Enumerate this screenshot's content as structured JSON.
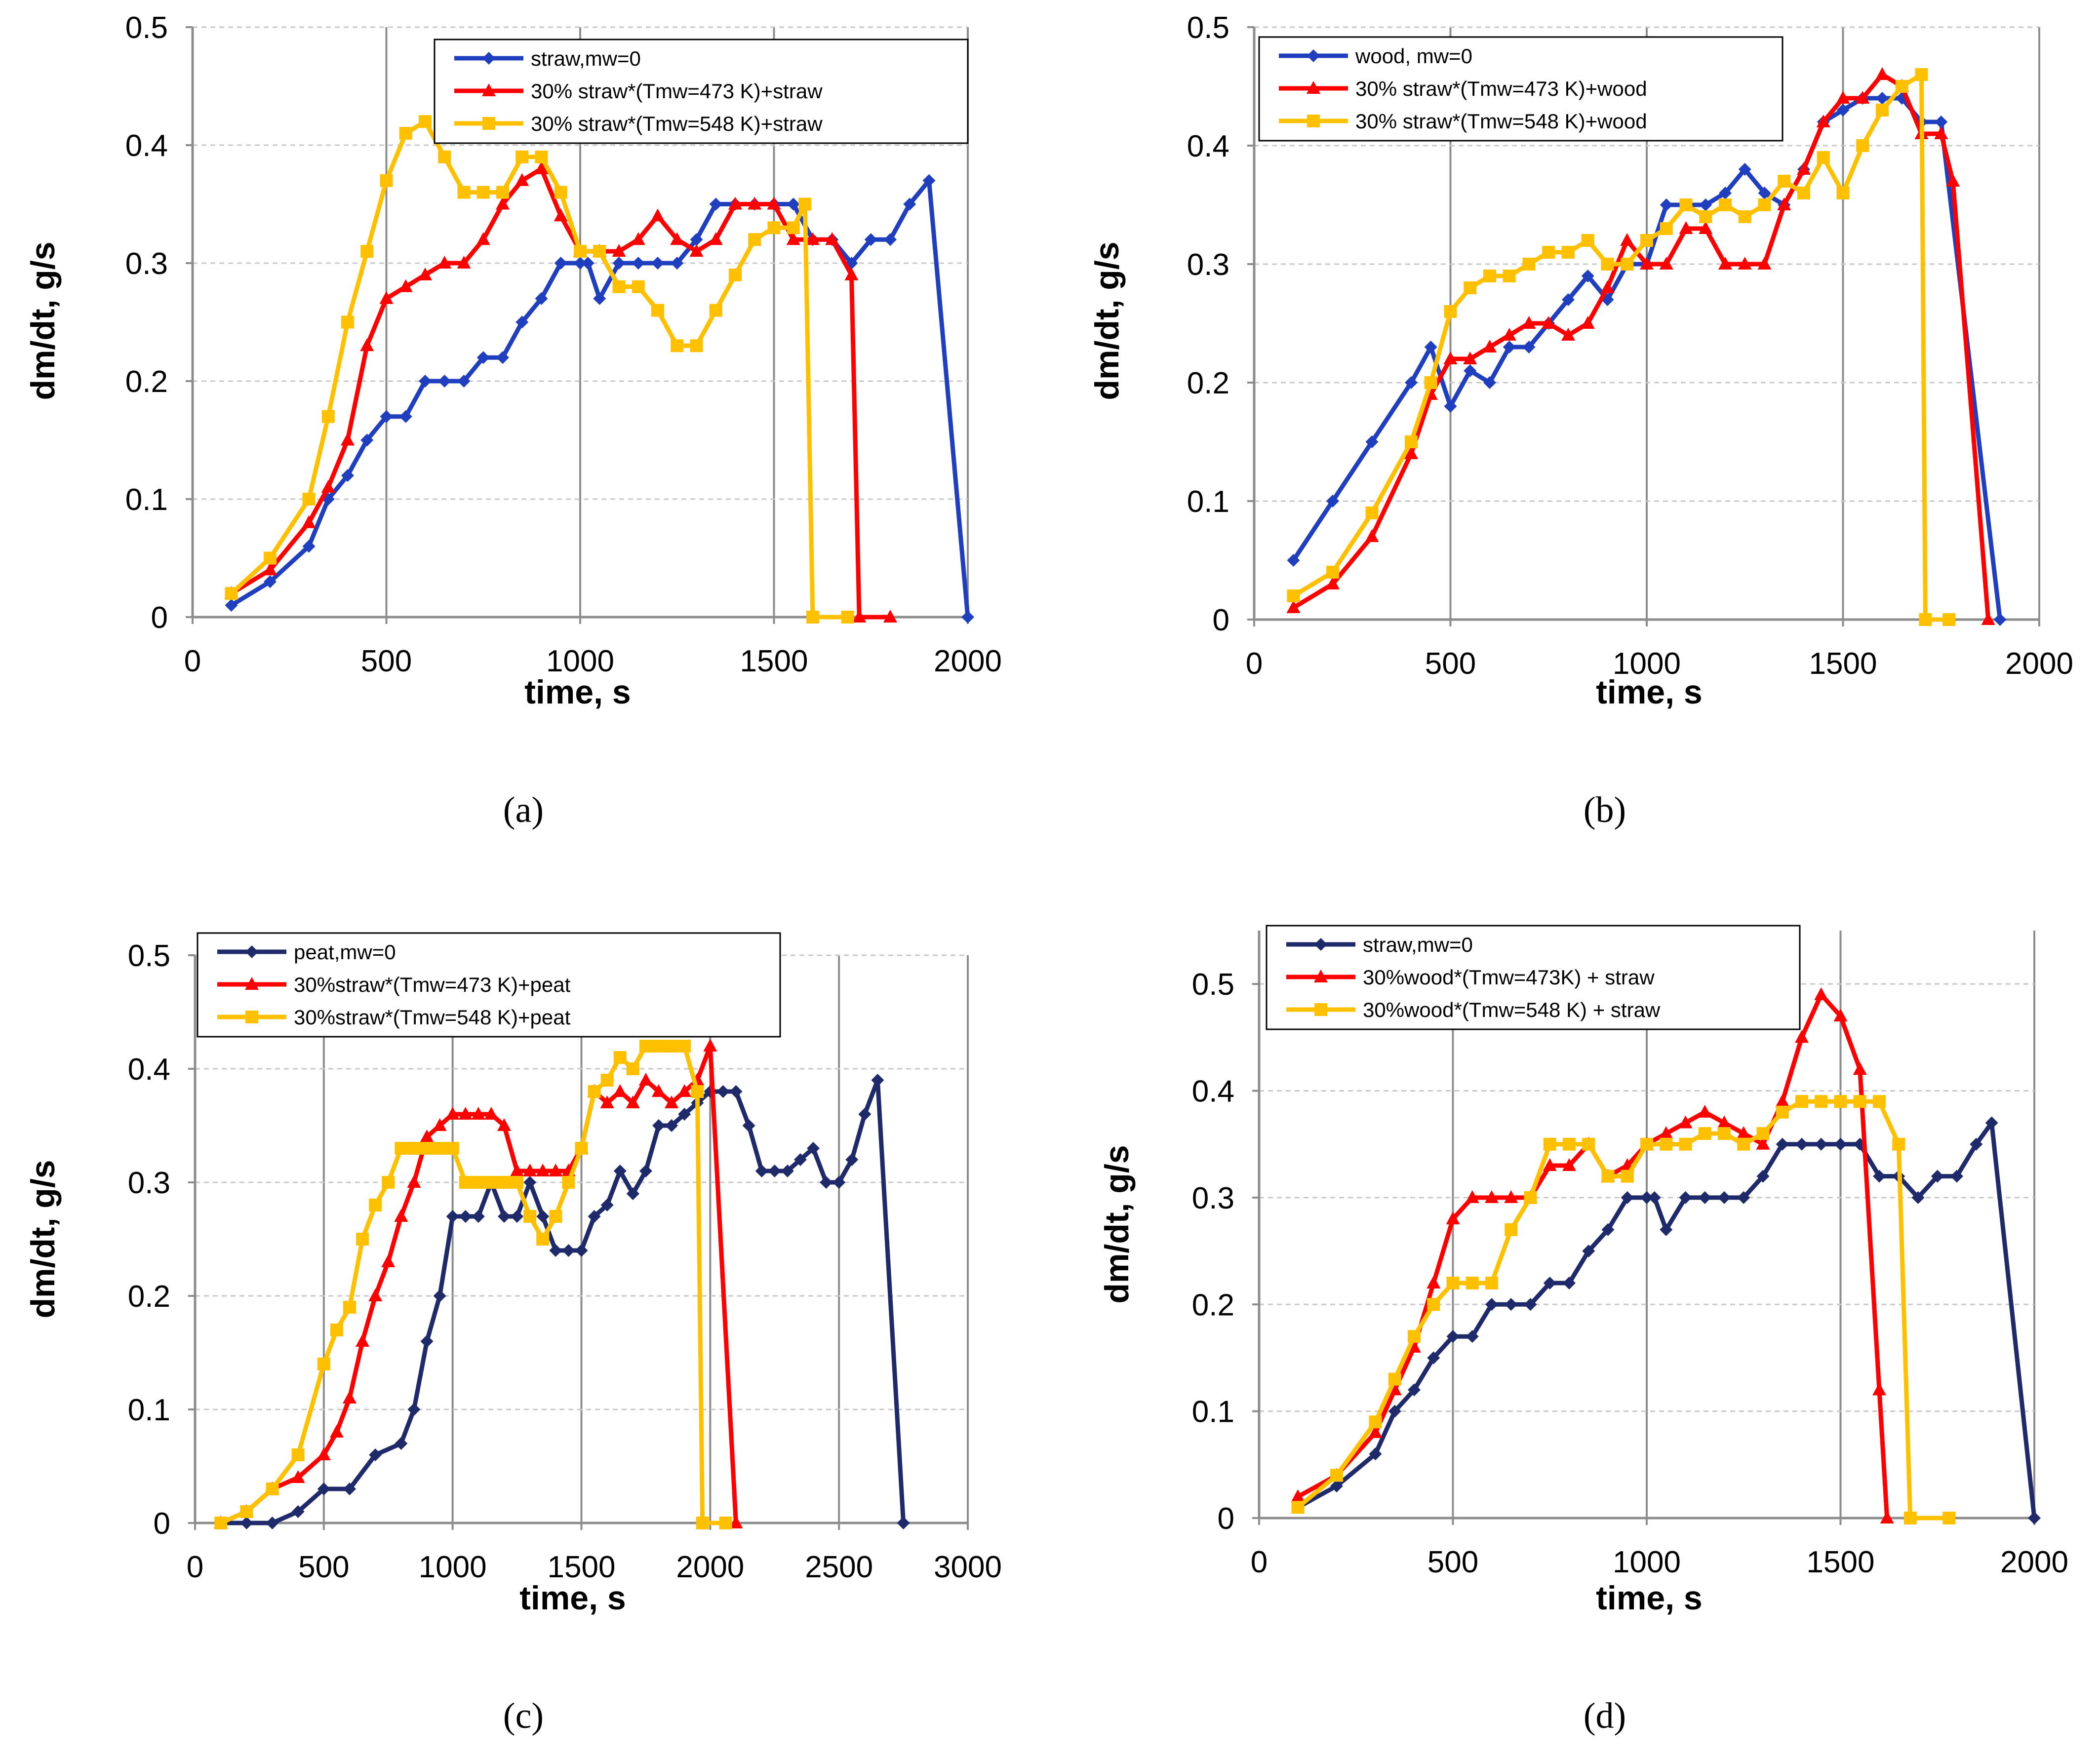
{
  "chart_data": [
    {
      "type": "line",
      "panel_label": "(a)",
      "xlabel": "time, s",
      "ylabel": "dm/dt, g/s",
      "xlim": [
        0,
        2000
      ],
      "ylim": [
        0,
        0.5
      ],
      "xticks": [
        0,
        500,
        1000,
        1500,
        2000
      ],
      "yticks": [
        0,
        0.1,
        0.2,
        0.3,
        0.4,
        0.5
      ],
      "ytick_labels": [
        "0",
        "0.1",
        "0.2",
        "0.3",
        "0.4",
        "0.5"
      ],
      "grid": "vertical major",
      "legend_position": "top-right",
      "series": [
        {
          "name": "straw,mw=0",
          "color": "#1F3FBF",
          "marker": "diamond",
          "x": [
            100,
            200,
            300,
            350,
            400,
            450,
            500,
            550,
            600,
            650,
            700,
            750,
            800,
            850,
            900,
            950,
            1000,
            1020,
            1050,
            1100,
            1150,
            1200,
            1250,
            1300,
            1350,
            1400,
            1450,
            1500,
            1550,
            1600,
            1650,
            1700,
            1750,
            1800,
            1850,
            1900,
            2000
          ],
          "y": [
            0.01,
            0.03,
            0.06,
            0.1,
            0.12,
            0.15,
            0.17,
            0.17,
            0.2,
            0.2,
            0.2,
            0.22,
            0.22,
            0.25,
            0.27,
            0.3,
            0.3,
            0.3,
            0.27,
            0.3,
            0.3,
            0.3,
            0.3,
            0.32,
            0.35,
            0.35,
            0.35,
            0.35,
            0.35,
            0.32,
            0.32,
            0.3,
            0.32,
            0.32,
            0.35,
            0.37,
            0.0
          ]
        },
        {
          "name": "30% straw*(Tmw=473 K)+straw",
          "color": "#FF0000",
          "marker": "triangle",
          "x": [
            100,
            200,
            300,
            350,
            400,
            450,
            500,
            550,
            600,
            650,
            700,
            750,
            800,
            850,
            900,
            950,
            1000,
            1050,
            1100,
            1150,
            1200,
            1250,
            1300,
            1350,
            1400,
            1450,
            1500,
            1550,
            1600,
            1650,
            1700,
            1720,
            1800
          ],
          "y": [
            0.02,
            0.04,
            0.08,
            0.11,
            0.15,
            0.23,
            0.27,
            0.28,
            0.29,
            0.3,
            0.3,
            0.32,
            0.35,
            0.37,
            0.38,
            0.34,
            0.31,
            0.31,
            0.31,
            0.32,
            0.34,
            0.32,
            0.31,
            0.32,
            0.35,
            0.35,
            0.35,
            0.32,
            0.32,
            0.32,
            0.29,
            0.0,
            0.0
          ]
        },
        {
          "name": "30% straw*(Tmw=548 K)+straw",
          "color": "#FFC000",
          "marker": "square",
          "x": [
            100,
            200,
            300,
            350,
            400,
            450,
            500,
            550,
            600,
            650,
            700,
            750,
            800,
            850,
            900,
            950,
            1000,
            1050,
            1100,
            1150,
            1200,
            1250,
            1300,
            1350,
            1400,
            1450,
            1500,
            1550,
            1580,
            1600,
            1690
          ],
          "y": [
            0.02,
            0.05,
            0.1,
            0.17,
            0.25,
            0.31,
            0.37,
            0.41,
            0.42,
            0.39,
            0.36,
            0.36,
            0.36,
            0.39,
            0.39,
            0.36,
            0.31,
            0.31,
            0.28,
            0.28,
            0.26,
            0.23,
            0.23,
            0.26,
            0.29,
            0.32,
            0.33,
            0.33,
            0.35,
            0.0,
            0.0
          ]
        }
      ]
    },
    {
      "type": "line",
      "panel_label": "(b)",
      "xlabel": "time, s",
      "ylabel": "dm/dt, g/s",
      "xlim": [
        0,
        2000
      ],
      "ylim": [
        0,
        0.5
      ],
      "xticks": [
        0,
        500,
        1000,
        1500,
        2000
      ],
      "yticks": [
        0,
        0.1,
        0.2,
        0.3,
        0.4,
        0.5
      ],
      "ytick_labels": [
        "0",
        "0.1",
        "0.2",
        "0.3",
        "0.4",
        "0.5"
      ],
      "grid": "vertical major",
      "legend_position": "top",
      "series": [
        {
          "name": "wood, mw=0",
          "color": "#1F3FBF",
          "marker": "diamond",
          "x": [
            100,
            200,
            300,
            400,
            450,
            500,
            550,
            600,
            650,
            700,
            750,
            800,
            850,
            900,
            950,
            1000,
            1050,
            1100,
            1150,
            1200,
            1250,
            1300,
            1350,
            1400,
            1450,
            1500,
            1550,
            1600,
            1650,
            1700,
            1750,
            1900
          ],
          "y": [
            0.05,
            0.1,
            0.15,
            0.2,
            0.23,
            0.18,
            0.21,
            0.2,
            0.23,
            0.23,
            0.25,
            0.27,
            0.29,
            0.27,
            0.3,
            0.3,
            0.35,
            0.35,
            0.35,
            0.36,
            0.38,
            0.36,
            0.35,
            0.38,
            0.42,
            0.43,
            0.44,
            0.44,
            0.44,
            0.42,
            0.42,
            0.0
          ]
        },
        {
          "name": "30% straw*(Tmw=473 K)+wood",
          "color": "#FF0000",
          "marker": "triangle",
          "x": [
            100,
            200,
            300,
            400,
            450,
            500,
            550,
            600,
            650,
            700,
            750,
            800,
            850,
            900,
            950,
            1000,
            1050,
            1100,
            1150,
            1200,
            1250,
            1300,
            1350,
            1400,
            1450,
            1500,
            1550,
            1600,
            1650,
            1700,
            1750,
            1780,
            1870
          ],
          "y": [
            0.01,
            0.03,
            0.07,
            0.14,
            0.19,
            0.22,
            0.22,
            0.23,
            0.24,
            0.25,
            0.25,
            0.24,
            0.25,
            0.28,
            0.32,
            0.3,
            0.3,
            0.33,
            0.33,
            0.3,
            0.3,
            0.3,
            0.35,
            0.38,
            0.42,
            0.44,
            0.44,
            0.46,
            0.45,
            0.41,
            0.41,
            0.37,
            0.0
          ]
        },
        {
          "name": "30% straw*(Tmw=548 K)+wood",
          "color": "#FFC000",
          "marker": "square",
          "x": [
            100,
            200,
            300,
            400,
            450,
            500,
            550,
            600,
            650,
            700,
            750,
            800,
            850,
            900,
            950,
            1000,
            1050,
            1100,
            1150,
            1200,
            1250,
            1300,
            1350,
            1400,
            1450,
            1500,
            1550,
            1600,
            1650,
            1700,
            1710,
            1770
          ],
          "y": [
            0.02,
            0.04,
            0.09,
            0.15,
            0.2,
            0.26,
            0.28,
            0.29,
            0.29,
            0.3,
            0.31,
            0.31,
            0.32,
            0.3,
            0.3,
            0.32,
            0.33,
            0.35,
            0.34,
            0.35,
            0.34,
            0.35,
            0.37,
            0.36,
            0.39,
            0.36,
            0.4,
            0.43,
            0.45,
            0.46,
            0.0,
            0.0
          ]
        }
      ]
    },
    {
      "type": "line",
      "panel_label": "(c)",
      "xlabel": "time, s",
      "ylabel": "dm/dt, g/s",
      "xlim": [
        0,
        3000
      ],
      "ylim": [
        0,
        0.5
      ],
      "xticks": [
        0,
        500,
        1000,
        1500,
        2000,
        2500,
        3000
      ],
      "yticks": [
        0,
        0.1,
        0.2,
        0.3,
        0.4,
        0.5
      ],
      "ytick_labels": [
        "0",
        "0.1",
        "0.2",
        "0.3",
        "0.4",
        "0.5"
      ],
      "grid": "vertical major",
      "legend_position": "top-left",
      "series": [
        {
          "name": "peat,mw=0",
          "color": "#1F2A6B",
          "marker": "diamond",
          "x": [
            100,
            200,
            300,
            400,
            500,
            600,
            700,
            800,
            850,
            900,
            950,
            1000,
            1050,
            1100,
            1150,
            1200,
            1250,
            1300,
            1350,
            1400,
            1450,
            1500,
            1550,
            1600,
            1650,
            1700,
            1750,
            1800,
            1850,
            1900,
            1950,
            2000,
            2050,
            2100,
            2150,
            2200,
            2250,
            2300,
            2350,
            2400,
            2450,
            2500,
            2550,
            2600,
            2650,
            2750
          ],
          "y": [
            0.0,
            0.0,
            0.0,
            0.01,
            0.03,
            0.03,
            0.06,
            0.07,
            0.1,
            0.16,
            0.2,
            0.27,
            0.27,
            0.27,
            0.3,
            0.27,
            0.27,
            0.3,
            0.27,
            0.24,
            0.24,
            0.24,
            0.27,
            0.28,
            0.31,
            0.29,
            0.31,
            0.35,
            0.35,
            0.36,
            0.37,
            0.38,
            0.38,
            0.38,
            0.35,
            0.31,
            0.31,
            0.31,
            0.32,
            0.33,
            0.3,
            0.3,
            0.32,
            0.36,
            0.39,
            0.0
          ]
        },
        {
          "name": "30%straw*(Tmw=473 K)+peat",
          "color": "#FF0000",
          "marker": "triangle",
          "x": [
            100,
            200,
            300,
            400,
            500,
            550,
            600,
            650,
            700,
            750,
            800,
            850,
            900,
            950,
            1000,
            1050,
            1100,
            1150,
            1200,
            1250,
            1300,
            1350,
            1400,
            1450,
            1500,
            1550,
            1600,
            1650,
            1700,
            1750,
            1800,
            1850,
            1900,
            1950,
            2000,
            2100
          ],
          "y": [
            0.0,
            0.01,
            0.03,
            0.04,
            0.06,
            0.08,
            0.11,
            0.16,
            0.2,
            0.23,
            0.27,
            0.3,
            0.34,
            0.35,
            0.36,
            0.36,
            0.36,
            0.36,
            0.35,
            0.31,
            0.31,
            0.31,
            0.31,
            0.31,
            0.33,
            0.38,
            0.37,
            0.38,
            0.37,
            0.39,
            0.38,
            0.37,
            0.38,
            0.39,
            0.42,
            0.0
          ]
        },
        {
          "name": "30%straw*(Tmw=548 K)+peat",
          "color": "#FFC000",
          "marker": "square",
          "x": [
            100,
            200,
            300,
            400,
            500,
            550,
            600,
            650,
            700,
            750,
            800,
            850,
            900,
            950,
            1000,
            1050,
            1100,
            1150,
            1200,
            1250,
            1300,
            1350,
            1400,
            1450,
            1500,
            1550,
            1600,
            1650,
            1700,
            1750,
            1800,
            1850,
            1900,
            1950,
            1970,
            2060
          ],
          "y": [
            0.0,
            0.01,
            0.03,
            0.06,
            0.14,
            0.17,
            0.19,
            0.25,
            0.28,
            0.3,
            0.33,
            0.33,
            0.33,
            0.33,
            0.33,
            0.3,
            0.3,
            0.3,
            0.3,
            0.3,
            0.27,
            0.25,
            0.27,
            0.3,
            0.33,
            0.38,
            0.39,
            0.41,
            0.4,
            0.42,
            0.42,
            0.42,
            0.42,
            0.38,
            0.0,
            0.0
          ]
        }
      ]
    },
    {
      "type": "line",
      "panel_label": "(d)",
      "xlabel": "time, s",
      "ylabel": "dm/dt, g/s",
      "xlim": [
        0,
        2000
      ],
      "ylim": [
        0,
        0.55
      ],
      "xticks": [
        0,
        500,
        1000,
        1500,
        2000
      ],
      "yticks": [
        0,
        0.1,
        0.2,
        0.3,
        0.4,
        0.5
      ],
      "ytick_labels": [
        "0",
        "0.1",
        "0.2",
        "0.3",
        "0.4",
        "0.5"
      ],
      "grid": "vertical major",
      "legend_position": "top-left",
      "series": [
        {
          "name": "straw,mw=0",
          "color": "#1F2A6B",
          "marker": "diamond",
          "x": [
            100,
            200,
            300,
            350,
            400,
            450,
            500,
            550,
            600,
            650,
            700,
            750,
            800,
            850,
            900,
            950,
            1000,
            1020,
            1050,
            1100,
            1150,
            1200,
            1250,
            1300,
            1350,
            1400,
            1450,
            1500,
            1550,
            1600,
            1650,
            1700,
            1750,
            1800,
            1850,
            1890,
            2000
          ],
          "y": [
            0.01,
            0.03,
            0.06,
            0.1,
            0.12,
            0.15,
            0.17,
            0.17,
            0.2,
            0.2,
            0.2,
            0.22,
            0.22,
            0.25,
            0.27,
            0.3,
            0.3,
            0.3,
            0.27,
            0.3,
            0.3,
            0.3,
            0.3,
            0.32,
            0.35,
            0.35,
            0.35,
            0.35,
            0.35,
            0.32,
            0.32,
            0.3,
            0.32,
            0.32,
            0.35,
            0.37,
            0.0
          ]
        },
        {
          "name": "30%wood*(Tmw=473K) + straw",
          "color": "#FF0000",
          "marker": "triangle",
          "x": [
            100,
            200,
            300,
            350,
            400,
            450,
            500,
            550,
            600,
            650,
            700,
            750,
            800,
            850,
            900,
            950,
            1000,
            1050,
            1100,
            1150,
            1200,
            1250,
            1300,
            1350,
            1400,
            1450,
            1500,
            1550,
            1600,
            1620
          ],
          "y": [
            0.02,
            0.04,
            0.08,
            0.12,
            0.16,
            0.22,
            0.28,
            0.3,
            0.3,
            0.3,
            0.3,
            0.33,
            0.33,
            0.35,
            0.32,
            0.33,
            0.35,
            0.36,
            0.37,
            0.38,
            0.37,
            0.36,
            0.35,
            0.39,
            0.45,
            0.49,
            0.47,
            0.42,
            0.12,
            0.0
          ]
        },
        {
          "name": "30%wood*(Tmw=548 K) + straw",
          "color": "#FFC000",
          "marker": "square",
          "x": [
            100,
            200,
            300,
            350,
            400,
            450,
            500,
            550,
            600,
            650,
            700,
            750,
            800,
            850,
            900,
            950,
            1000,
            1050,
            1100,
            1150,
            1200,
            1250,
            1300,
            1350,
            1400,
            1450,
            1500,
            1550,
            1600,
            1650,
            1680,
            1780
          ],
          "y": [
            0.01,
            0.04,
            0.09,
            0.13,
            0.17,
            0.2,
            0.22,
            0.22,
            0.22,
            0.27,
            0.3,
            0.35,
            0.35,
            0.35,
            0.32,
            0.32,
            0.35,
            0.35,
            0.35,
            0.36,
            0.36,
            0.35,
            0.36,
            0.38,
            0.39,
            0.39,
            0.39,
            0.39,
            0.39,
            0.35,
            0.0,
            0.0
          ]
        }
      ]
    }
  ]
}
